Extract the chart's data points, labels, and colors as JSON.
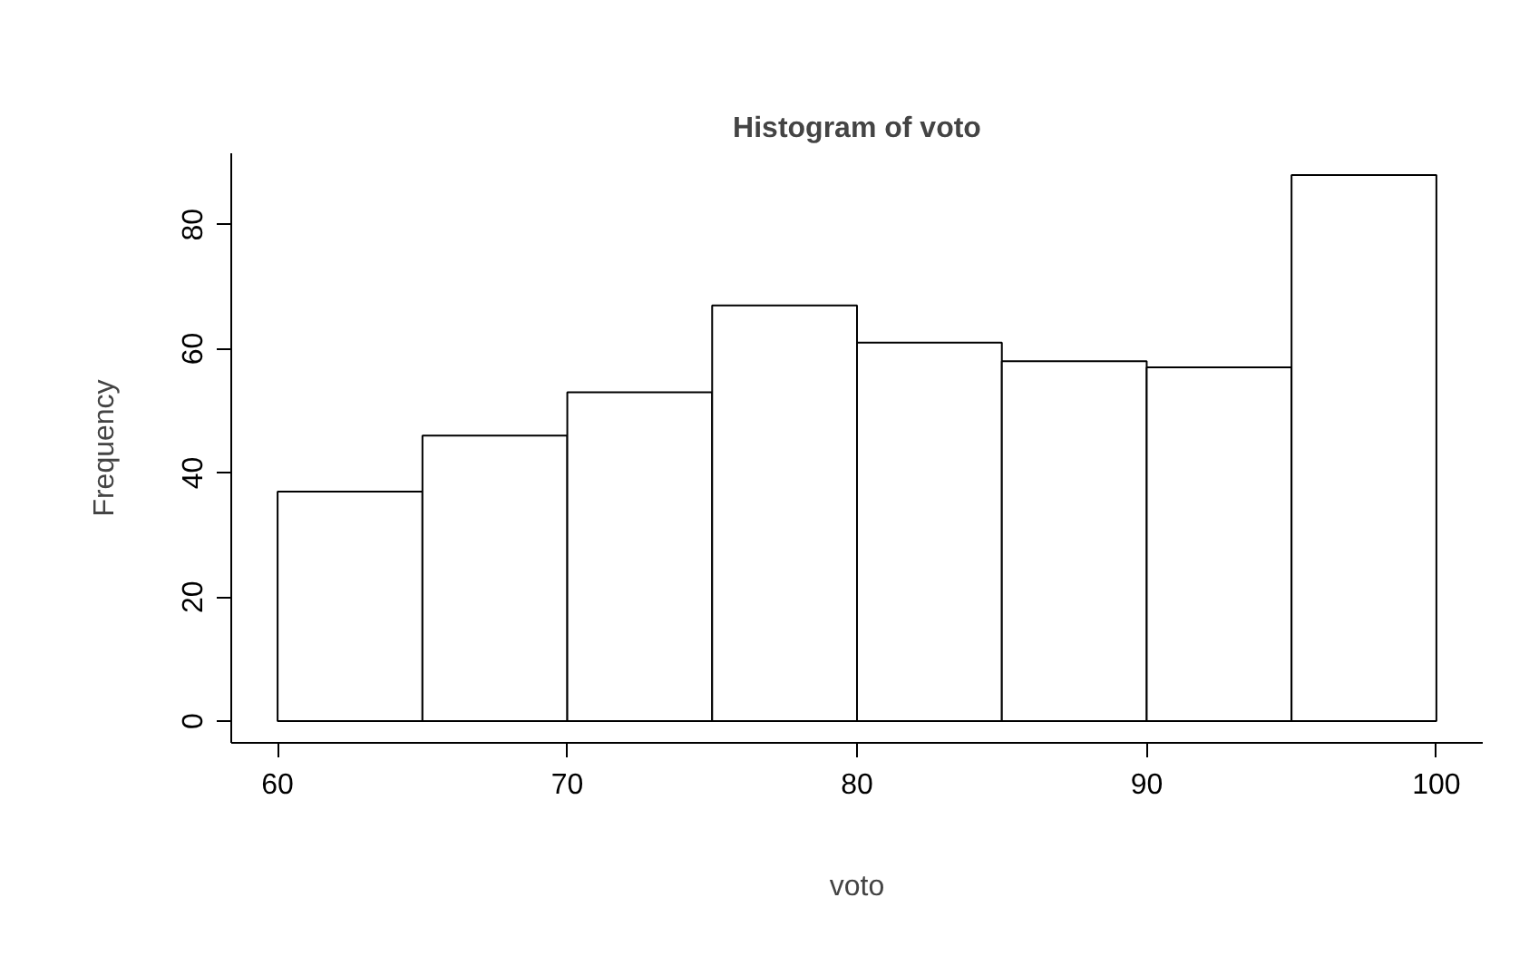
{
  "chart_data": {
    "type": "histogram",
    "title": "Histogram of voto",
    "xlabel": "voto",
    "ylabel": "Frequency",
    "bins": [
      60,
      65,
      70,
      75,
      80,
      85,
      90,
      95,
      100
    ],
    "values": [
      37,
      46,
      53,
      67,
      61,
      58,
      57,
      88
    ],
    "color": "#ffffff",
    "xlim": [
      58.4,
      101.6
    ],
    "ylim": [
      -3.5,
      91.5
    ],
    "xticks": [
      60,
      70,
      80,
      90,
      100
    ],
    "yticks": [
      0,
      20,
      40,
      60,
      80
    ]
  }
}
